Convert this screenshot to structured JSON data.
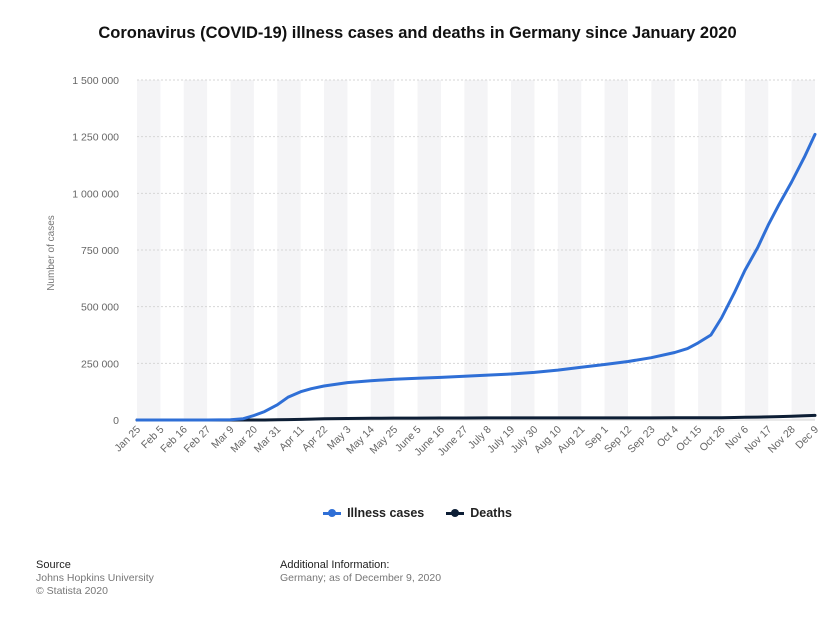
{
  "chart_data": {
    "type": "line",
    "title": "Coronavirus (COVID-19) illness cases and deaths in Germany since January 2020",
    "ylabel": "Number of cases",
    "xlabel": "",
    "ylim": [
      0,
      1500000
    ],
    "yticks": [
      0,
      250000,
      500000,
      750000,
      1000000,
      1250000,
      1500000
    ],
    "ytick_labels": [
      "0",
      "250 000",
      "500 000",
      "750 000",
      "1 000 000",
      "1 250 000",
      "1 500 000"
    ],
    "x_start": "2020-01-25",
    "x_end": "2020-12-09",
    "xtick_labels": [
      "Jan 25",
      "Feb 5",
      "Feb 16",
      "Feb 27",
      "Mar 9",
      "Mar 20",
      "Mar 31",
      "Apr 11",
      "Apr 22",
      "May 3",
      "May 14",
      "May 25",
      "June 5",
      "June 16",
      "June 27",
      "July 8",
      "July 19",
      "July 30",
      "Aug 10",
      "Aug 21",
      "Sep 1",
      "Sep 12",
      "Sep 23",
      "Oct 4",
      "Oct 15",
      "Oct 26",
      "Nov 6",
      "Nov 17",
      "Nov 28",
      "Dec 9"
    ],
    "grid": true,
    "legend_position": "bottom",
    "x": [
      "2020-01-25",
      "2020-02-05",
      "2020-02-16",
      "2020-02-27",
      "2020-03-09",
      "2020-03-15",
      "2020-03-20",
      "2020-03-25",
      "2020-03-31",
      "2020-04-05",
      "2020-04-11",
      "2020-04-16",
      "2020-04-22",
      "2020-05-03",
      "2020-05-14",
      "2020-05-25",
      "2020-06-05",
      "2020-06-16",
      "2020-06-27",
      "2020-07-08",
      "2020-07-19",
      "2020-07-30",
      "2020-08-10",
      "2020-08-21",
      "2020-09-01",
      "2020-09-12",
      "2020-09-23",
      "2020-10-04",
      "2020-10-10",
      "2020-10-15",
      "2020-10-21",
      "2020-10-26",
      "2020-11-01",
      "2020-11-06",
      "2020-11-12",
      "2020-11-17",
      "2020-11-22",
      "2020-11-28",
      "2020-12-04",
      "2020-12-09"
    ],
    "series": [
      {
        "name": "Illness cases",
        "color": "#2f6fd6",
        "values": [
          0,
          16,
          16,
          60,
          1200,
          5800,
          19800,
          37000,
          67000,
          100000,
          125000,
          138000,
          150000,
          165000,
          173000,
          180000,
          184000,
          188000,
          193000,
          198000,
          203000,
          210000,
          220000,
          233000,
          245000,
          258000,
          275000,
          298000,
          315000,
          340000,
          375000,
          450000,
          560000,
          660000,
          760000,
          860000,
          950000,
          1050000,
          1160000,
          1260000
        ]
      },
      {
        "name": "Deaths",
        "color": "#0d1e35",
        "values": [
          0,
          0,
          0,
          0,
          2,
          13,
          68,
          200,
          700,
          1600,
          2800,
          4000,
          5100,
          6800,
          7700,
          8300,
          8600,
          8800,
          8950,
          9050,
          9100,
          9150,
          9200,
          9250,
          9300,
          9350,
          9450,
          9550,
          9650,
          9800,
          10000,
          10300,
          10900,
          11800,
          12800,
          13800,
          15000,
          16500,
          18600,
          20500
        ]
      }
    ]
  },
  "legend": {
    "items": [
      {
        "label": "Illness cases"
      },
      {
        "label": "Deaths"
      }
    ]
  },
  "footer": {
    "source_heading": "Source",
    "source_lines": [
      "Johns Hopkins University",
      "© Statista 2020"
    ],
    "info_heading": "Additional Information:",
    "info_text": "Germany; as of December 9, 2020"
  }
}
